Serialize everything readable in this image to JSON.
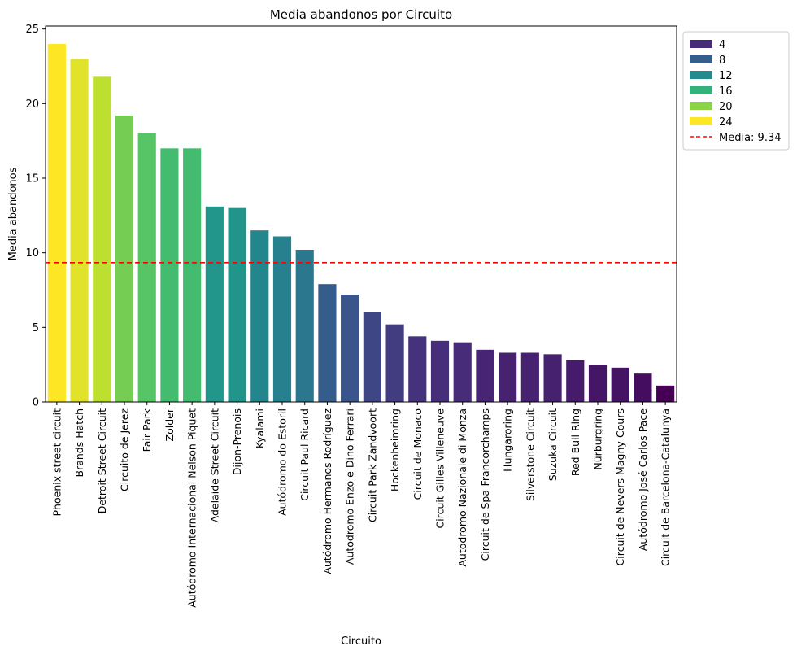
{
  "chart_data": {
    "type": "bar",
    "title": "Media abandonos por Circuito",
    "xlabel": "Circuito",
    "ylabel": "Media abandonos",
    "ylim": [
      0,
      25.2
    ],
    "yticks": [
      0,
      5,
      10,
      15,
      20,
      25
    ],
    "categories": [
      "Phoenix street circuit",
      "Brands Hatch",
      "Detroit Street Circuit",
      "Circuito de Jerez",
      "Fair Park",
      "Zolder",
      "Autódromo Internacional Nelson Piquet",
      "Adelaide Street Circuit",
      "Dijon-Prenois",
      "Kyalami",
      "Autódromo do Estoril",
      "Circuit Paul Ricard",
      "Autódromo Hermanos Rodríguez",
      "Autodromo Enzo e Dino Ferrari",
      "Circuit Park Zandvoort",
      "Hockenheimring",
      "Circuit de Monaco",
      "Circuit Gilles Villeneuve",
      "Autodromo Nazionale di Monza",
      "Circuit de Spa-Francorchamps",
      "Hungaroring",
      "Silverstone Circuit",
      "Suzuka Circuit",
      "Red Bull Ring",
      "Nürburgring",
      "Circuit de Nevers Magny-Cours",
      "Autódromo José Carlos Pace",
      "Circuit de Barcelona-Catalunya"
    ],
    "values": [
      24.0,
      23.0,
      21.8,
      19.2,
      18.0,
      17.0,
      17.0,
      13.1,
      13.0,
      11.5,
      11.1,
      10.2,
      7.9,
      7.2,
      6.0,
      5.2,
      4.4,
      4.1,
      4.0,
      3.5,
      3.3,
      3.3,
      3.2,
      2.8,
      2.5,
      2.3,
      1.9,
      1.1
    ],
    "mean_line": {
      "value": 9.34,
      "label": "Media: 9.34",
      "color": "#ff0000"
    },
    "colormap": "viridis",
    "legend": {
      "placement": "outside-top-right",
      "entries": [
        "4",
        "8",
        "12",
        "16",
        "20",
        "24"
      ]
    },
    "grid": false
  }
}
